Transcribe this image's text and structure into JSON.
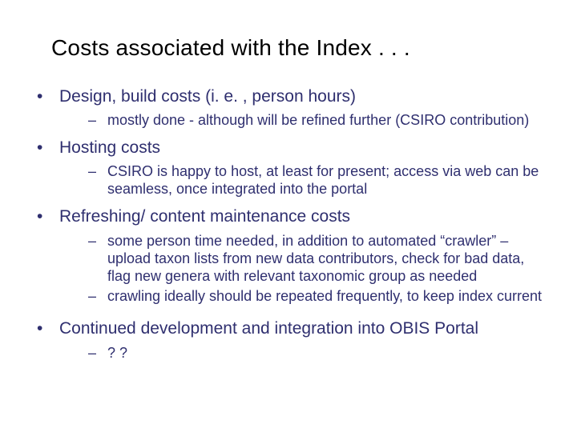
{
  "colors": {
    "background": "#ffffff",
    "title_text": "#000000",
    "body_text": "#2f2f6f",
    "bullet": "#2f2f6f"
  },
  "typography": {
    "title_fontsize_pt": 28,
    "level1_fontsize_pt": 21,
    "level2_fontsize_pt": 18,
    "font_family": "Arial"
  },
  "title": "Costs associated with the Index . . .",
  "bullets": [
    {
      "text": "Design, build costs (i. e. , person hours)",
      "sub": [
        "mostly done - although will be refined further (CSIRO contribution)"
      ]
    },
    {
      "text": "Hosting costs",
      "sub": [
        "CSIRO is happy to host, at least for present; access via web can be seamless, once integrated into the portal"
      ]
    },
    {
      "text": "Refreshing/ content maintenance costs",
      "sub": [
        "some person time needed, in addition to automated “crawler” – upload taxon lists from new data contributors, check for bad data, flag new genera with relevant taxonomic group as needed",
        "crawling ideally should be repeated frequently, to keep index current"
      ]
    },
    {
      "text": "Continued development and integration into OBIS Portal",
      "sub": [
        " ? ?"
      ]
    }
  ]
}
